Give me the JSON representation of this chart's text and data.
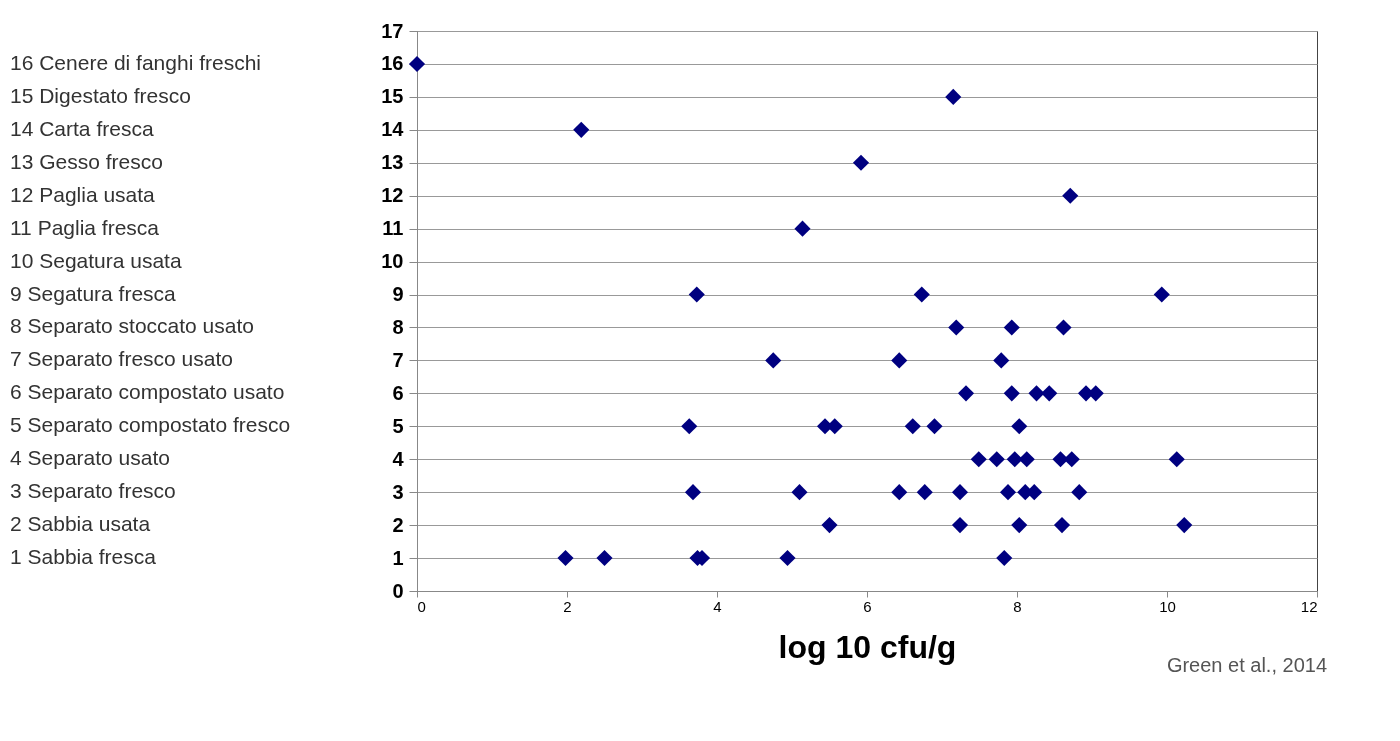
{
  "chart_data": {
    "type": "scatter",
    "xlabel": "log 10 cfu/g",
    "annotations": [
      "16 Cenere  di fanghi freschi",
      "15 Digestato fresco",
      "14 Carta fresca",
      "13 Gesso fresco",
      "12 Paglia usata",
      "11 Paglia fresca",
      "10 Segatura usata",
      "9   Segatura fresca",
      "8   Separato stoccato usato",
      "7   Separato fresco usato",
      "6   Separato compostato usato",
      "5   Separato  compostato fresco",
      "4   Separato usato",
      "3   Separato fresco",
      "2   Sabbia usata",
      "1   Sabbia fresca",
      "Green et al., 2014"
    ],
    "series": [
      {
        "color": "#000080",
        "x": [
          0,
          7.15,
          2.19,
          5.92,
          8.71,
          5.14,
          3.73,
          6.73,
          9.93,
          7.19,
          7.93,
          8.62,
          4.75,
          6.43,
          7.79,
          7.32,
          7.93,
          8.26,
          8.43,
          8.92,
          9.05,
          3.63,
          5.44,
          5.57,
          6.61,
          6.9,
          8.03,
          7.49,
          7.73,
          7.97,
          8.13,
          8.58,
          8.73,
          10.13,
          3.68,
          5.1,
          6.43,
          6.77,
          7.24,
          7.88,
          8.11,
          8.23,
          8.83,
          5.5,
          7.24,
          8.03,
          8.6,
          10.23,
          1.98,
          2.5,
          3.74,
          3.8,
          4.94,
          7.83
        ],
        "values": [
          16,
          15,
          14,
          13,
          12,
          11,
          9,
          9,
          9,
          8,
          8,
          8,
          7,
          7,
          7,
          6,
          6,
          6,
          6,
          6,
          6,
          5,
          5,
          5,
          5,
          5,
          5,
          4,
          4,
          4,
          4,
          4,
          4,
          4,
          3,
          3,
          3,
          3,
          3,
          3,
          3,
          3,
          3,
          2,
          2,
          2,
          2,
          2,
          1,
          1,
          1,
          1,
          1,
          1
        ]
      }
    ],
    "xlim": [
      0,
      12
    ],
    "xticks": [
      0,
      2,
      4,
      6,
      8,
      10,
      12
    ],
    "ylim": [
      0,
      17
    ],
    "yticks": [
      0,
      1,
      2,
      3,
      4,
      5,
      6,
      7,
      8,
      9,
      10,
      11,
      12,
      13,
      14,
      15,
      16,
      17
    ],
    "grid": "y",
    "marker": "diamond"
  }
}
